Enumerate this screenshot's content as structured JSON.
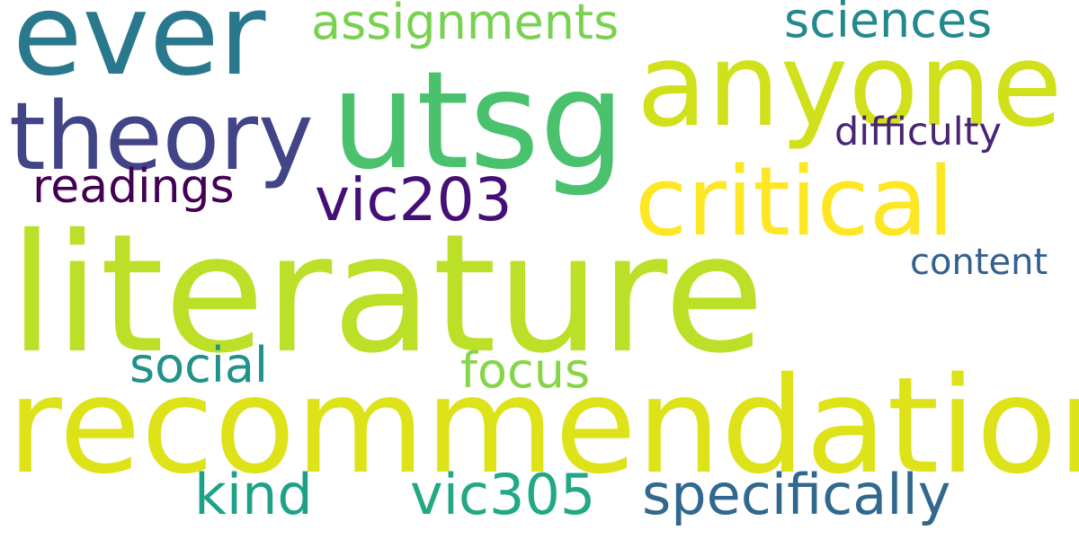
{
  "background": "#ffffff",
  "words": {
    "literature": {
      "text": "literature",
      "color": "#bcdf27"
    },
    "recommendation": {
      "text": "recommendation",
      "color": "#dde318"
    },
    "utsg": {
      "text": "utsg",
      "color": "#4ac16d"
    },
    "anyone": {
      "text": "anyone",
      "color": "#d0e11c"
    },
    "ever": {
      "text": "ever",
      "color": "#2a788e"
    },
    "theory": {
      "text": "theory",
      "color": "#414487"
    },
    "critical": {
      "text": "critical",
      "color": "#fde725"
    },
    "assignments": {
      "text": "assignments",
      "color": "#7ad151"
    },
    "sciences": {
      "text": "sciences",
      "color": "#23898e"
    },
    "difficulty": {
      "text": "difficulty",
      "color": "#482475"
    },
    "readings": {
      "text": "readings",
      "color": "#440154"
    },
    "vic203": {
      "text": "vic203",
      "color": "#440f76"
    },
    "content": {
      "text": "content",
      "color": "#355f8d"
    },
    "social": {
      "text": "social",
      "color": "#21918c"
    },
    "focus": {
      "text": "focus",
      "color": "#86d549"
    },
    "kind": {
      "text": "kind",
      "color": "#1fa187"
    },
    "vic305": {
      "text": "vic305",
      "color": "#22a884"
    },
    "specifically": {
      "text": "specifically",
      "color": "#31688e"
    }
  }
}
